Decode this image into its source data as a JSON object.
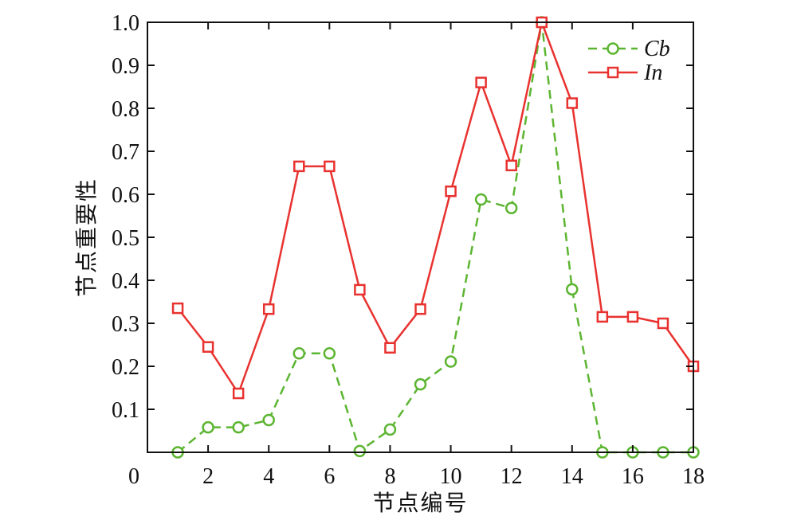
{
  "chart_data": {
    "type": "line",
    "title": "",
    "xlabel": "节点编号",
    "ylabel": "节点重要性",
    "xlim": [
      0,
      18
    ],
    "ylim": [
      0,
      1.0
    ],
    "x_ticks": [
      "0",
      "2",
      "4",
      "6",
      "8",
      "10",
      "12",
      "14",
      "16",
      "18"
    ],
    "y_ticks": [
      "0.1",
      "0.2",
      "0.3",
      "0.4",
      "0.5",
      "0.6",
      "0.7",
      "0.8",
      "0.9",
      "1.0"
    ],
    "grid": false,
    "legend_position": "top-right",
    "x": [
      1,
      2,
      3,
      4,
      5,
      6,
      7,
      8,
      9,
      10,
      11,
      12,
      13,
      14,
      15,
      16,
      17,
      18
    ],
    "series": [
      {
        "name": "Cb",
        "color": "#5cb531",
        "marker": "circle",
        "line_style": "dashed",
        "values": [
          0.0,
          0.058,
          0.058,
          0.075,
          0.23,
          0.23,
          0.003,
          0.053,
          0.158,
          0.211,
          0.588,
          0.568,
          1.0,
          0.379,
          0.0,
          0.0,
          0.0,
          0.0
        ]
      },
      {
        "name": "In",
        "color": "#e8322f",
        "marker": "square",
        "line_style": "solid",
        "values": [
          0.335,
          0.245,
          0.137,
          0.333,
          0.665,
          0.665,
          0.378,
          0.243,
          0.333,
          0.607,
          0.86,
          0.667,
          1.0,
          0.812,
          0.315,
          0.315,
          0.3,
          0.2
        ]
      }
    ]
  }
}
